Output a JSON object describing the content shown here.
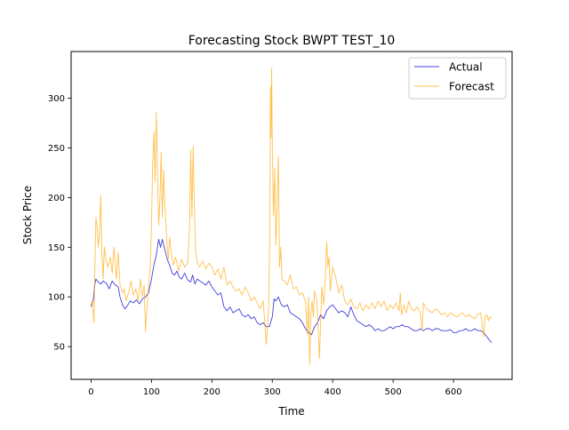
{
  "chart_data": {
    "type": "line",
    "title": "Forecasting Stock BWPT TEST_10",
    "xlabel": "Time",
    "ylabel": "Stock Price",
    "xlim": [
      -33,
      697
    ],
    "ylim": [
      17,
      347
    ],
    "xticks": [
      0,
      100,
      200,
      300,
      400,
      500,
      600
    ],
    "yticks": [
      50,
      100,
      150,
      200,
      250,
      300
    ],
    "grid": false,
    "legend_position": "top-right",
    "series": [
      {
        "name": "Actual",
        "color": "#0000cc",
        "points": [
          [
            0,
            90
          ],
          [
            4,
            98
          ],
          [
            6,
            112
          ],
          [
            8,
            118
          ],
          [
            12,
            115
          ],
          [
            16,
            113
          ],
          [
            20,
            116
          ],
          [
            25,
            114
          ],
          [
            30,
            108
          ],
          [
            35,
            116
          ],
          [
            40,
            112
          ],
          [
            45,
            110
          ],
          [
            48,
            100
          ],
          [
            52,
            92
          ],
          [
            56,
            88
          ],
          [
            60,
            91
          ],
          [
            65,
            96
          ],
          [
            70,
            94
          ],
          [
            75,
            97
          ],
          [
            80,
            93
          ],
          [
            85,
            98
          ],
          [
            90,
            100
          ],
          [
            95,
            104
          ],
          [
            100,
            118
          ],
          [
            104,
            132
          ],
          [
            108,
            142
          ],
          [
            112,
            158
          ],
          [
            115,
            150
          ],
          [
            118,
            158
          ],
          [
            122,
            148
          ],
          [
            126,
            138
          ],
          [
            130,
            132
          ],
          [
            134,
            124
          ],
          [
            138,
            122
          ],
          [
            142,
            126
          ],
          [
            146,
            120
          ],
          [
            150,
            118
          ],
          [
            155,
            124
          ],
          [
            160,
            117
          ],
          [
            165,
            115
          ],
          [
            168,
            122
          ],
          [
            172,
            113
          ],
          [
            176,
            118
          ],
          [
            180,
            116
          ],
          [
            185,
            114
          ],
          [
            190,
            112
          ],
          [
            195,
            116
          ],
          [
            200,
            110
          ],
          [
            205,
            106
          ],
          [
            210,
            102
          ],
          [
            215,
            104
          ],
          [
            220,
            90
          ],
          [
            225,
            86
          ],
          [
            230,
            90
          ],
          [
            235,
            84
          ],
          [
            240,
            86
          ],
          [
            245,
            88
          ],
          [
            250,
            82
          ],
          [
            255,
            80
          ],
          [
            260,
            82
          ],
          [
            265,
            78
          ],
          [
            270,
            80
          ],
          [
            275,
            74
          ],
          [
            280,
            72
          ],
          [
            285,
            74
          ],
          [
            290,
            70
          ],
          [
            295,
            70
          ],
          [
            300,
            80
          ],
          [
            303,
            98
          ],
          [
            306,
            96
          ],
          [
            310,
            100
          ],
          [
            315,
            92
          ],
          [
            320,
            90
          ],
          [
            325,
            92
          ],
          [
            330,
            84
          ],
          [
            335,
            82
          ],
          [
            340,
            80
          ],
          [
            345,
            78
          ],
          [
            350,
            74
          ],
          [
            355,
            68
          ],
          [
            360,
            64
          ],
          [
            365,
            62
          ],
          [
            370,
            70
          ],
          [
            375,
            74
          ],
          [
            380,
            82
          ],
          [
            385,
            78
          ],
          [
            390,
            86
          ],
          [
            395,
            90
          ],
          [
            400,
            92
          ],
          [
            405,
            88
          ],
          [
            410,
            84
          ],
          [
            415,
            86
          ],
          [
            420,
            84
          ],
          [
            425,
            80
          ],
          [
            430,
            90
          ],
          [
            435,
            82
          ],
          [
            440,
            76
          ],
          [
            445,
            74
          ],
          [
            450,
            72
          ],
          [
            455,
            70
          ],
          [
            460,
            72
          ],
          [
            465,
            70
          ],
          [
            470,
            66
          ],
          [
            475,
            68
          ],
          [
            480,
            66
          ],
          [
            485,
            66
          ],
          [
            490,
            68
          ],
          [
            495,
            70
          ],
          [
            500,
            68
          ],
          [
            505,
            70
          ],
          [
            510,
            70
          ],
          [
            515,
            72
          ],
          [
            520,
            70
          ],
          [
            525,
            70
          ],
          [
            530,
            68
          ],
          [
            535,
            66
          ],
          [
            540,
            66
          ],
          [
            545,
            68
          ],
          [
            550,
            66
          ],
          [
            555,
            68
          ],
          [
            560,
            68
          ],
          [
            565,
            66
          ],
          [
            570,
            68
          ],
          [
            575,
            68
          ],
          [
            580,
            66
          ],
          [
            585,
            66
          ],
          [
            590,
            66
          ],
          [
            595,
            67
          ],
          [
            600,
            64
          ],
          [
            605,
            64
          ],
          [
            610,
            66
          ],
          [
            615,
            66
          ],
          [
            620,
            68
          ],
          [
            625,
            66
          ],
          [
            630,
            66
          ],
          [
            635,
            68
          ],
          [
            640,
            66
          ],
          [
            645,
            66
          ],
          [
            650,
            64
          ],
          [
            655,
            60
          ],
          [
            660,
            56
          ],
          [
            663,
            54
          ]
        ]
      },
      {
        "name": "Forecast",
        "color": "#ffa500",
        "points": [
          [
            0,
            92
          ],
          [
            2,
            96
          ],
          [
            4,
            80
          ],
          [
            5,
            74
          ],
          [
            6,
            120
          ],
          [
            8,
            180
          ],
          [
            10,
            170
          ],
          [
            12,
            150
          ],
          [
            14,
            162
          ],
          [
            16,
            202
          ],
          [
            18,
            140
          ],
          [
            20,
            118
          ],
          [
            22,
            150
          ],
          [
            25,
            136
          ],
          [
            28,
            130
          ],
          [
            32,
            140
          ],
          [
            35,
            124
          ],
          [
            38,
            150
          ],
          [
            42,
            118
          ],
          [
            45,
            145
          ],
          [
            48,
            112
          ],
          [
            52,
            104
          ],
          [
            55,
            108
          ],
          [
            58,
            96
          ],
          [
            62,
            104
          ],
          [
            66,
            116
          ],
          [
            70,
            102
          ],
          [
            74,
            108
          ],
          [
            78,
            96
          ],
          [
            82,
            118
          ],
          [
            85,
            100
          ],
          [
            88,
            112
          ],
          [
            90,
            65
          ],
          [
            92,
            84
          ],
          [
            95,
            110
          ],
          [
            98,
            130
          ],
          [
            100,
            172
          ],
          [
            102,
            234
          ],
          [
            104,
            266
          ],
          [
            106,
            216
          ],
          [
            108,
            286
          ],
          [
            110,
            220
          ],
          [
            112,
            172
          ],
          [
            114,
            198
          ],
          [
            116,
            246
          ],
          [
            118,
            180
          ],
          [
            120,
            228
          ],
          [
            122,
            196
          ],
          [
            124,
            172
          ],
          [
            126,
            150
          ],
          [
            128,
            138
          ],
          [
            130,
            160
          ],
          [
            133,
            144
          ],
          [
            136,
            132
          ],
          [
            140,
            140
          ],
          [
            145,
            126
          ],
          [
            150,
            138
          ],
          [
            155,
            130
          ],
          [
            160,
            134
          ],
          [
            163,
            170
          ],
          [
            165,
            248
          ],
          [
            167,
            180
          ],
          [
            169,
            252
          ],
          [
            171,
            190
          ],
          [
            173,
            146
          ],
          [
            176,
            134
          ],
          [
            180,
            130
          ],
          [
            185,
            136
          ],
          [
            190,
            128
          ],
          [
            195,
            134
          ],
          [
            200,
            130
          ],
          [
            205,
            122
          ],
          [
            210,
            128
          ],
          [
            215,
            118
          ],
          [
            220,
            130
          ],
          [
            225,
            112
          ],
          [
            230,
            116
          ],
          [
            235,
            110
          ],
          [
            240,
            106
          ],
          [
            245,
            108
          ],
          [
            250,
            102
          ],
          [
            255,
            110
          ],
          [
            260,
            104
          ],
          [
            265,
            96
          ],
          [
            270,
            100
          ],
          [
            275,
            94
          ],
          [
            280,
            88
          ],
          [
            285,
            96
          ],
          [
            290,
            52
          ],
          [
            292,
            70
          ],
          [
            294,
            90
          ],
          [
            296,
            170
          ],
          [
            297,
            312
          ],
          [
            298,
            260
          ],
          [
            299,
            330
          ],
          [
            300,
            250
          ],
          [
            302,
            182
          ],
          [
            304,
            230
          ],
          [
            306,
            152
          ],
          [
            308,
            192
          ],
          [
            310,
            242
          ],
          [
            312,
            130
          ],
          [
            314,
            150
          ],
          [
            316,
            118
          ],
          [
            320,
            116
          ],
          [
            325,
            112
          ],
          [
            330,
            122
          ],
          [
            335,
            108
          ],
          [
            340,
            110
          ],
          [
            345,
            102
          ],
          [
            350,
            104
          ],
          [
            355,
            96
          ],
          [
            358,
            62
          ],
          [
            360,
            100
          ],
          [
            362,
            32
          ],
          [
            364,
            84
          ],
          [
            366,
            96
          ],
          [
            368,
            80
          ],
          [
            370,
            106
          ],
          [
            374,
            96
          ],
          [
            378,
            38
          ],
          [
            382,
            110
          ],
          [
            385,
            92
          ],
          [
            388,
            120
          ],
          [
            390,
            156
          ],
          [
            392,
            130
          ],
          [
            394,
            140
          ],
          [
            396,
            106
          ],
          [
            400,
            130
          ],
          [
            405,
            120
          ],
          [
            410,
            104
          ],
          [
            415,
            112
          ],
          [
            420,
            96
          ],
          [
            425,
            92
          ],
          [
            430,
            98
          ],
          [
            435,
            90
          ],
          [
            440,
            88
          ],
          [
            445,
            94
          ],
          [
            450,
            86
          ],
          [
            455,
            92
          ],
          [
            460,
            88
          ],
          [
            465,
            94
          ],
          [
            470,
            88
          ],
          [
            475,
            96
          ],
          [
            480,
            90
          ],
          [
            485,
            96
          ],
          [
            490,
            86
          ],
          [
            495,
            92
          ],
          [
            500,
            88
          ],
          [
            505,
            94
          ],
          [
            510,
            86
          ],
          [
            512,
            104
          ],
          [
            514,
            82
          ],
          [
            518,
            92
          ],
          [
            522,
            84
          ],
          [
            526,
            96
          ],
          [
            530,
            88
          ],
          [
            535,
            86
          ],
          [
            540,
            90
          ],
          [
            545,
            84
          ],
          [
            548,
            66
          ],
          [
            550,
            94
          ],
          [
            555,
            88
          ],
          [
            560,
            86
          ],
          [
            565,
            84
          ],
          [
            570,
            88
          ],
          [
            575,
            86
          ],
          [
            580,
            82
          ],
          [
            585,
            84
          ],
          [
            590,
            80
          ],
          [
            595,
            84
          ],
          [
            600,
            82
          ],
          [
            605,
            80
          ],
          [
            610,
            82
          ],
          [
            615,
            84
          ],
          [
            620,
            80
          ],
          [
            625,
            82
          ],
          [
            630,
            80
          ],
          [
            635,
            78
          ],
          [
            640,
            82
          ],
          [
            645,
            84
          ],
          [
            650,
            60
          ],
          [
            652,
            80
          ],
          [
            655,
            82
          ],
          [
            658,
            76
          ],
          [
            660,
            80
          ],
          [
            663,
            78
          ]
        ]
      }
    ]
  }
}
